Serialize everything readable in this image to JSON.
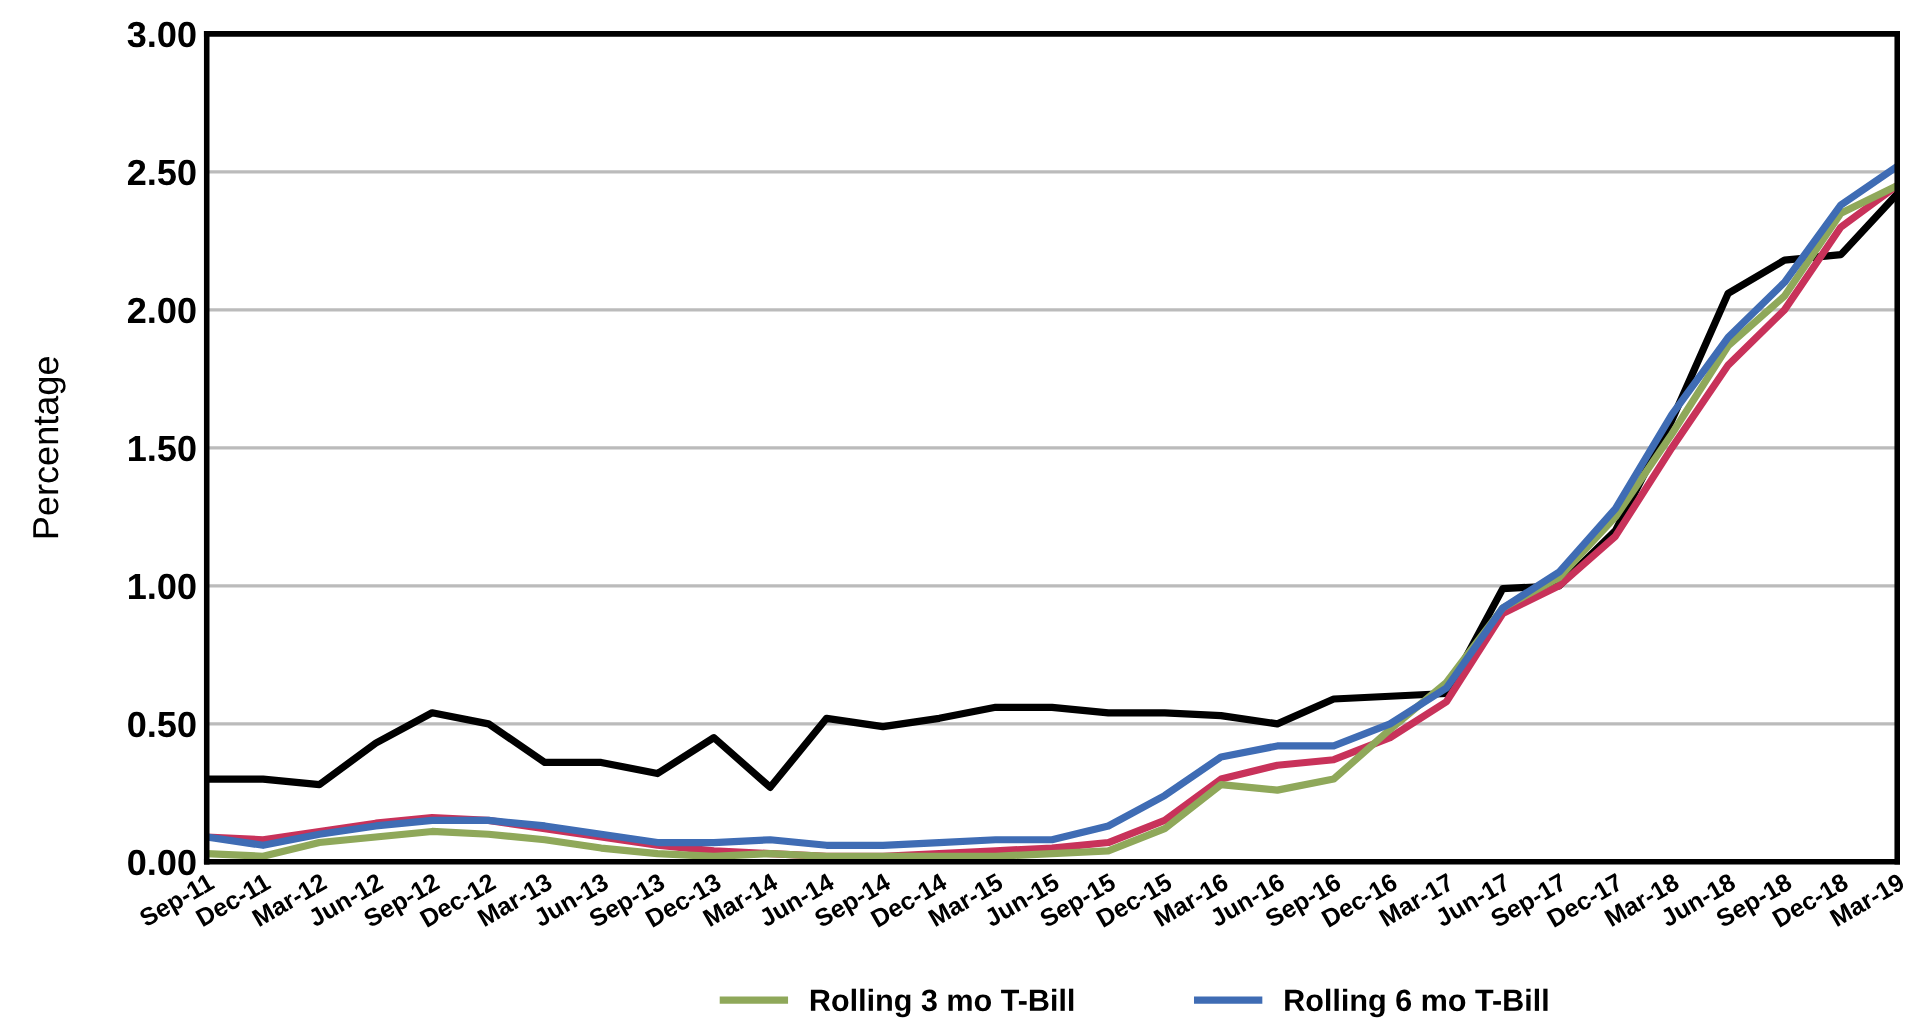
{
  "chart_data": {
    "type": "line",
    "ylabel": "Percentage",
    "categories": [
      "Sep-11",
      "Dec-11",
      "Mar-12",
      "Jun-12",
      "Sep-12",
      "Dec-12",
      "Mar-13",
      "Jun-13",
      "Sep-13",
      "Dec-13",
      "Mar-14",
      "Jun-14",
      "Sep-14",
      "Dec-14",
      "Mar-15",
      "Jun-15",
      "Sep-15",
      "Dec-15",
      "Mar-16",
      "Jun-16",
      "Sep-16",
      "Dec-16",
      "Mar-17",
      "Jun-17",
      "Sep-17",
      "Dec-17",
      "Mar-18",
      "Jun-18",
      "Sep-18",
      "Dec-18",
      "Mar-19"
    ],
    "series": [
      {
        "color": "#000000",
        "values": [
          0.3,
          0.3,
          0.28,
          0.43,
          0.54,
          0.5,
          0.36,
          0.36,
          0.32,
          0.45,
          0.27,
          0.52,
          0.49,
          0.52,
          0.56,
          0.56,
          0.54,
          0.54,
          0.53,
          0.5,
          0.59,
          0.6,
          0.61,
          0.99,
          1.0,
          1.2,
          1.6,
          2.06,
          2.18,
          2.2,
          2.42
        ]
      },
      {
        "color": "#c8325a",
        "values": [
          0.09,
          0.08,
          0.11,
          0.14,
          0.16,
          0.15,
          0.12,
          0.09,
          0.06,
          0.04,
          0.03,
          0.02,
          0.02,
          0.03,
          0.04,
          0.05,
          0.07,
          0.15,
          0.3,
          0.35,
          0.37,
          0.45,
          0.58,
          0.9,
          1.0,
          1.18,
          1.5,
          1.8,
          2.0,
          2.3,
          2.45
        ]
      },
      {
        "name": "Rolling 3 mo T-Bill",
        "color": "#8fa85a",
        "values": [
          0.03,
          0.02,
          0.07,
          0.09,
          0.11,
          0.1,
          0.08,
          0.05,
          0.03,
          0.02,
          0.03,
          0.02,
          0.02,
          0.02,
          0.02,
          0.03,
          0.04,
          0.12,
          0.28,
          0.26,
          0.3,
          0.48,
          0.65,
          0.92,
          1.03,
          1.25,
          1.55,
          1.87,
          2.05,
          2.35,
          2.45
        ]
      },
      {
        "name": "Rolling 6 mo T-Bill",
        "color": "#3f6cb4",
        "values": [
          0.09,
          0.06,
          0.1,
          0.13,
          0.15,
          0.15,
          0.13,
          0.1,
          0.07,
          0.07,
          0.08,
          0.06,
          0.06,
          0.07,
          0.08,
          0.08,
          0.13,
          0.24,
          0.38,
          0.42,
          0.42,
          0.5,
          0.63,
          0.92,
          1.05,
          1.28,
          1.62,
          1.9,
          2.1,
          2.38,
          2.52
        ]
      }
    ],
    "ylim": [
      0,
      3
    ],
    "yticks": [
      {
        "value": 0,
        "label": "0.00"
      },
      {
        "value": 0.5,
        "label": "0.50"
      },
      {
        "value": 1,
        "label": "1.00"
      },
      {
        "value": 1.5,
        "label": "1.50"
      },
      {
        "value": 2,
        "label": "2.00"
      },
      {
        "value": 2.5,
        "label": "2.50"
      },
      {
        "value": 3,
        "label": "3.00"
      }
    ],
    "grid": "y",
    "legend": "bottom",
    "marker": "none",
    "line_style": "solid"
  }
}
